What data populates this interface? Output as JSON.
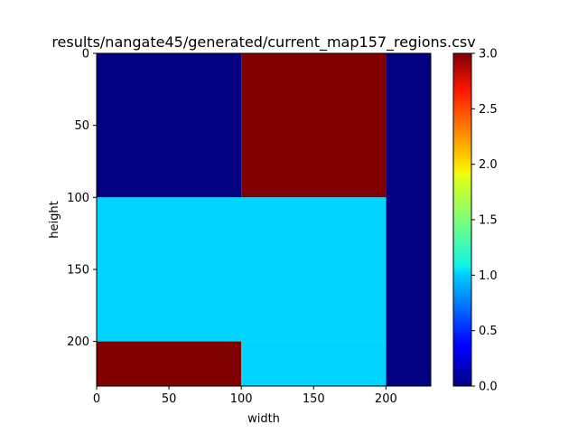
{
  "chart_data": {
    "type": "heatmap",
    "title": "results/nangate45/generated/current_map157_regions.csv",
    "xlabel": "width",
    "ylabel": "height",
    "xlim": [
      0,
      231
    ],
    "ylim": [
      231,
      0
    ],
    "y_inverted": true,
    "x_ticks": [
      0,
      50,
      100,
      150,
      200
    ],
    "y_ticks": [
      0,
      50,
      100,
      150,
      200
    ],
    "colormap": "jet",
    "colorbar": {
      "range": [
        0.0,
        3.0
      ],
      "ticks": [
        "0.0",
        "0.5",
        "1.0",
        "1.5",
        "2.0",
        "2.5",
        "3.0"
      ]
    },
    "regions": [
      {
        "x": [
          0,
          100
        ],
        "y": [
          0,
          100
        ],
        "value": 0
      },
      {
        "x": [
          100,
          200
        ],
        "y": [
          0,
          100
        ],
        "value": 3
      },
      {
        "x": [
          200,
          231
        ],
        "y": [
          0,
          231
        ],
        "value": 0
      },
      {
        "x": [
          0,
          200
        ],
        "y": [
          100,
          200
        ],
        "value": 1
      },
      {
        "x": [
          0,
          100
        ],
        "y": [
          200,
          231
        ],
        "value": 3
      },
      {
        "x": [
          100,
          200
        ],
        "y": [
          200,
          231
        ],
        "value": 1
      }
    ],
    "grid": false,
    "legend": "none"
  }
}
